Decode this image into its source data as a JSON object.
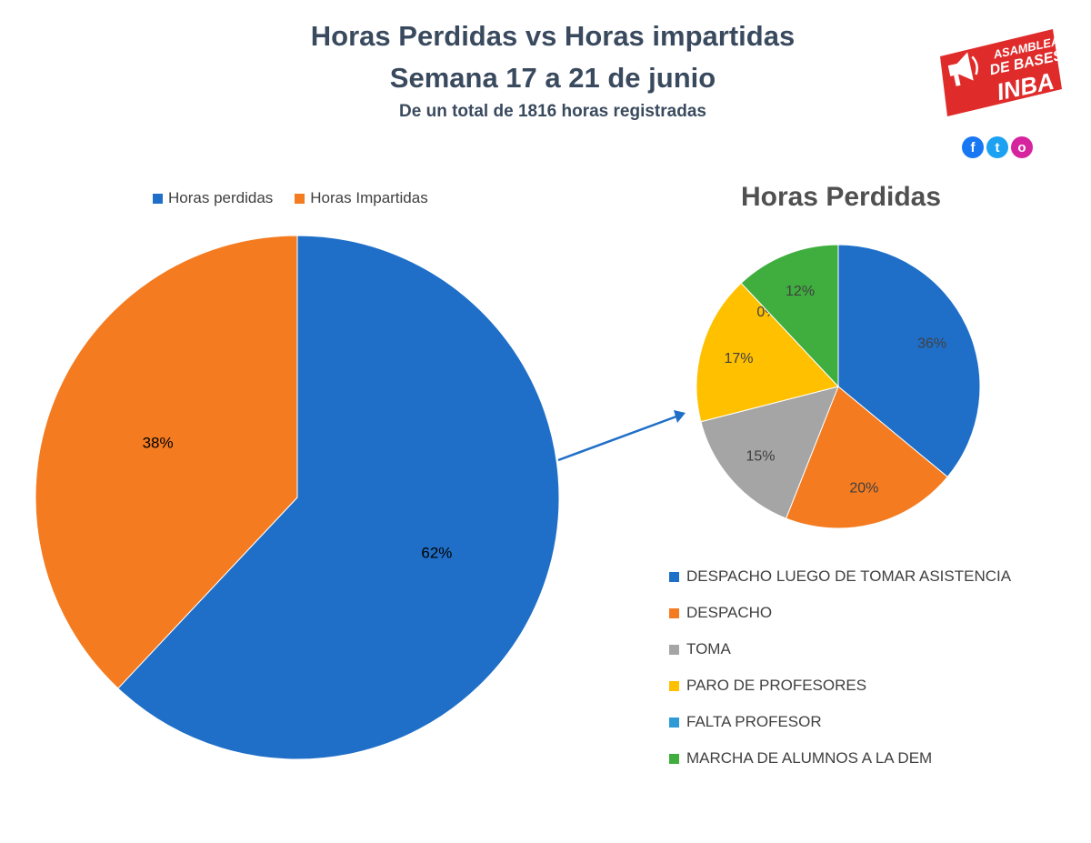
{
  "header": {
    "title_line1": "Horas Perdidas vs Horas impartidas",
    "title_line2": "Semana 17 a 21 de junio",
    "subtitle": "De un total de 1816 horas registradas"
  },
  "logo": {
    "line1": "ASAMBLEA",
    "line2": "DE BASES",
    "line3": "INBA",
    "color": "#e02b2b"
  },
  "social": {
    "facebook_icon": "f",
    "twitter_icon": "t",
    "instagram_icon": "o"
  },
  "colors": {
    "blue": "#1f6fc8",
    "orange": "#f47b20",
    "gray": "#a5a5a5",
    "yellow": "#ffc000",
    "light_blue": "#2e9bd6",
    "green": "#3fae3f",
    "title": "#3a4a5e"
  },
  "chart_data": [
    {
      "type": "pie",
      "title": "",
      "legend_position": "top",
      "labels": [
        "Horas perdidas",
        "Horas Impartidas"
      ],
      "values": [
        62,
        38
      ],
      "value_labels": [
        "62%",
        "38%"
      ],
      "colors": [
        "#1f6fc8",
        "#f47b20"
      ]
    },
    {
      "type": "pie",
      "title": "Horas Perdidas",
      "legend_position": "bottom",
      "labels": [
        "DESPACHO LUEGO DE TOMAR ASISTENCIA",
        "DESPACHO",
        "TOMA",
        "PARO DE PROFESORES",
        "FALTA PROFESOR",
        "MARCHA DE ALUMNOS A LA DEM"
      ],
      "values": [
        36,
        20,
        15,
        17,
        0,
        12
      ],
      "value_labels": [
        "36%",
        "20%",
        "15%",
        "17%",
        "0%",
        "12%"
      ],
      "colors": [
        "#1f6fc8",
        "#f47b20",
        "#a5a5a5",
        "#ffc000",
        "#2e9bd6",
        "#3fae3f"
      ]
    }
  ]
}
